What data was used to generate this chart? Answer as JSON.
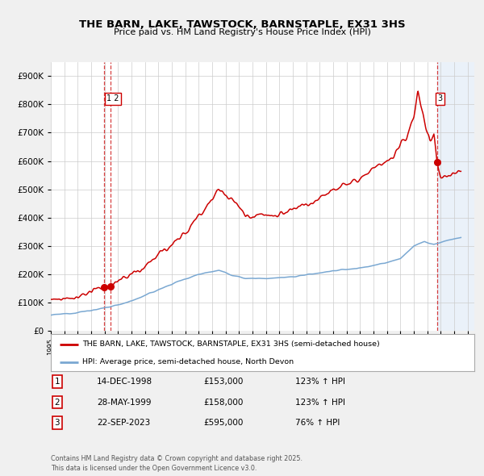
{
  "title": "THE BARN, LAKE, TAWSTOCK, BARNSTAPLE, EX31 3HS",
  "subtitle": "Price paid vs. HM Land Registry's House Price Index (HPI)",
  "legend_line1": "THE BARN, LAKE, TAWSTOCK, BARNSTAPLE, EX31 3HS (semi-detached house)",
  "legend_line2": "HPI: Average price, semi-detached house, North Devon",
  "table_rows": [
    {
      "num": "1",
      "date": "14-DEC-1998",
      "price": "£153,000",
      "hpi": "123% ↑ HPI"
    },
    {
      "num": "2",
      "date": "28-MAY-1999",
      "price": "£158,000",
      "hpi": "123% ↑ HPI"
    },
    {
      "num": "3",
      "date": "22-SEP-2023",
      "price": "£595,000",
      "hpi": "76% ↑ HPI"
    }
  ],
  "footer": "Contains HM Land Registry data © Crown copyright and database right 2025.\nThis data is licensed under the Open Government Licence v3.0.",
  "sale_dates": [
    1998.96,
    1999.41,
    2023.73
  ],
  "sale_prices": [
    153000,
    158000,
    595000
  ],
  "property_color": "#cc0000",
  "hpi_color": "#7aa8d2",
  "background_color": "#f0f0f0",
  "plot_bg_color": "#ffffff",
  "grid_color": "#cccccc",
  "shade_color": "#dde8f5",
  "ylim": [
    0,
    950000
  ],
  "xlim": [
    1995.0,
    2026.5
  ]
}
